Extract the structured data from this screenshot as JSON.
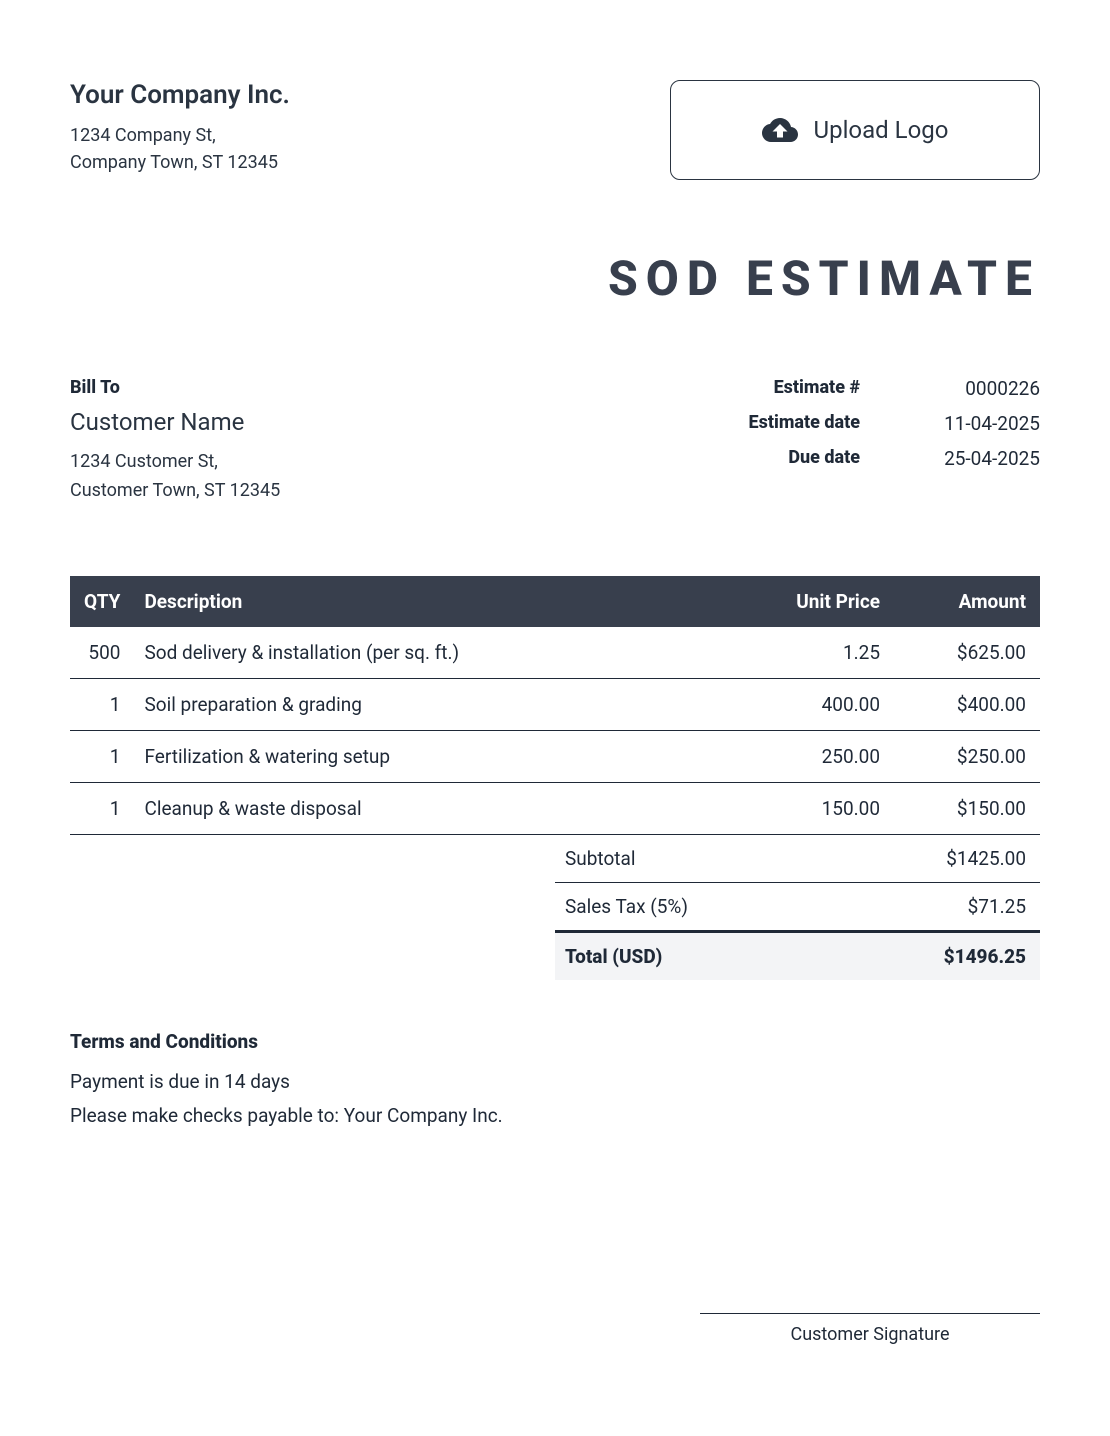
{
  "company": {
    "name": "Your Company Inc.",
    "address_line1": "1234 Company St,",
    "address_line2": "Company Town, ST 12345"
  },
  "upload": {
    "label": "Upload Logo"
  },
  "title": "SOD ESTIMATE",
  "bill_to": {
    "label": "Bill To",
    "name": "Customer Name",
    "address_line1": "1234 Customer St,",
    "address_line2": "Customer Town, ST 12345"
  },
  "meta": {
    "estimate_number_label": "Estimate #",
    "estimate_number": "0000226",
    "estimate_date_label": "Estimate date",
    "estimate_date": "11-04-2025",
    "due_date_label": "Due date",
    "due_date": "25-04-2025"
  },
  "columns": {
    "qty": "QTY",
    "description": "Description",
    "unit_price": "Unit Price",
    "amount": "Amount"
  },
  "items": [
    {
      "qty": "500",
      "desc": "Sod delivery & installation (per sq. ft.)",
      "unit": "1.25",
      "amt": "$625.00"
    },
    {
      "qty": "1",
      "desc": "Soil preparation & grading",
      "unit": "400.00",
      "amt": "$400.00"
    },
    {
      "qty": "1",
      "desc": "Fertilization & watering setup",
      "unit": "250.00",
      "amt": "$250.00"
    },
    {
      "qty": "1",
      "desc": "Cleanup & waste disposal",
      "unit": "150.00",
      "amt": "$150.00"
    }
  ],
  "totals": {
    "subtotal_label": "Subtotal",
    "subtotal": "$1425.00",
    "tax_label": "Sales Tax (5%)",
    "tax": "$71.25",
    "grand_label": "Total (USD)",
    "grand": "$1496.25"
  },
  "terms": {
    "title": "Terms and Conditions",
    "line1": "Payment is due in 14 days",
    "line2": "Please make checks payable to: Your Company Inc."
  },
  "signature": {
    "label": "Customer Signature"
  },
  "colors": {
    "header_bg": "#383f4d",
    "text": "#1f2937",
    "total_bg": "#f3f4f6"
  }
}
